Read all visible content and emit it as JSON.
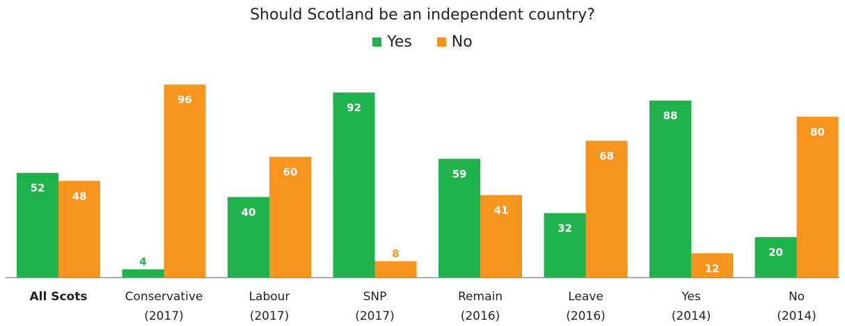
{
  "chart_data": {
    "type": "bar",
    "title": "Should Scotland be an independent country?",
    "xlabel": "",
    "ylabel": "",
    "ylim": [
      0,
      100
    ],
    "grid": false,
    "legend_position": "top-center",
    "categories": [
      [
        "All Scots"
      ],
      [
        "Conservative",
        "(2017)"
      ],
      [
        "Labour",
        "(2017)"
      ],
      [
        "SNP",
        "(2017)"
      ],
      [
        "Remain",
        "(2016)"
      ],
      [
        "Leave",
        "(2016)"
      ],
      [
        "Yes",
        "(2014)"
      ],
      [
        "No",
        "(2014)"
      ]
    ],
    "series": [
      {
        "name": "Yes",
        "color": "#1fb14b",
        "values": [
          52,
          4,
          40,
          92,
          59,
          32,
          88,
          20
        ]
      },
      {
        "name": "No",
        "color": "#f7941d",
        "values": [
          48,
          96,
          60,
          8,
          41,
          68,
          12,
          80
        ]
      }
    ]
  }
}
